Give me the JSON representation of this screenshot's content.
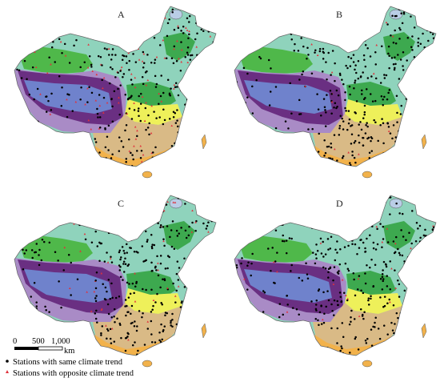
{
  "colors": {
    "desert_green": "#4fb84a",
    "plateau_blue": "#6f82cc",
    "plateau_purple": "#6a2f82",
    "plateau_lilac": "#a98bc6",
    "north_teal": "#8fd3bc",
    "central_green": "#3da94f",
    "yellow_band": "#eef05a",
    "south_tan": "#d9ba86",
    "coastal_orange": "#f2b24b",
    "lake_blue": "#b9cde6",
    "same_trend_dot": "#000000",
    "opposite_trend_dot": "#e0323c"
  },
  "panels": [
    {
      "label": "A",
      "opposite_density": "high"
    },
    {
      "label": "B",
      "opposite_density": "low"
    },
    {
      "label": "C",
      "opposite_density": "medium"
    },
    {
      "label": "D",
      "opposite_density": "low"
    }
  ],
  "scale_bar": {
    "ticks": [
      "0",
      "500",
      "1,000"
    ],
    "unit": "km"
  },
  "legend": {
    "same": "Stations with same climate trend",
    "opposite": "Stations with opposite climate trend"
  }
}
